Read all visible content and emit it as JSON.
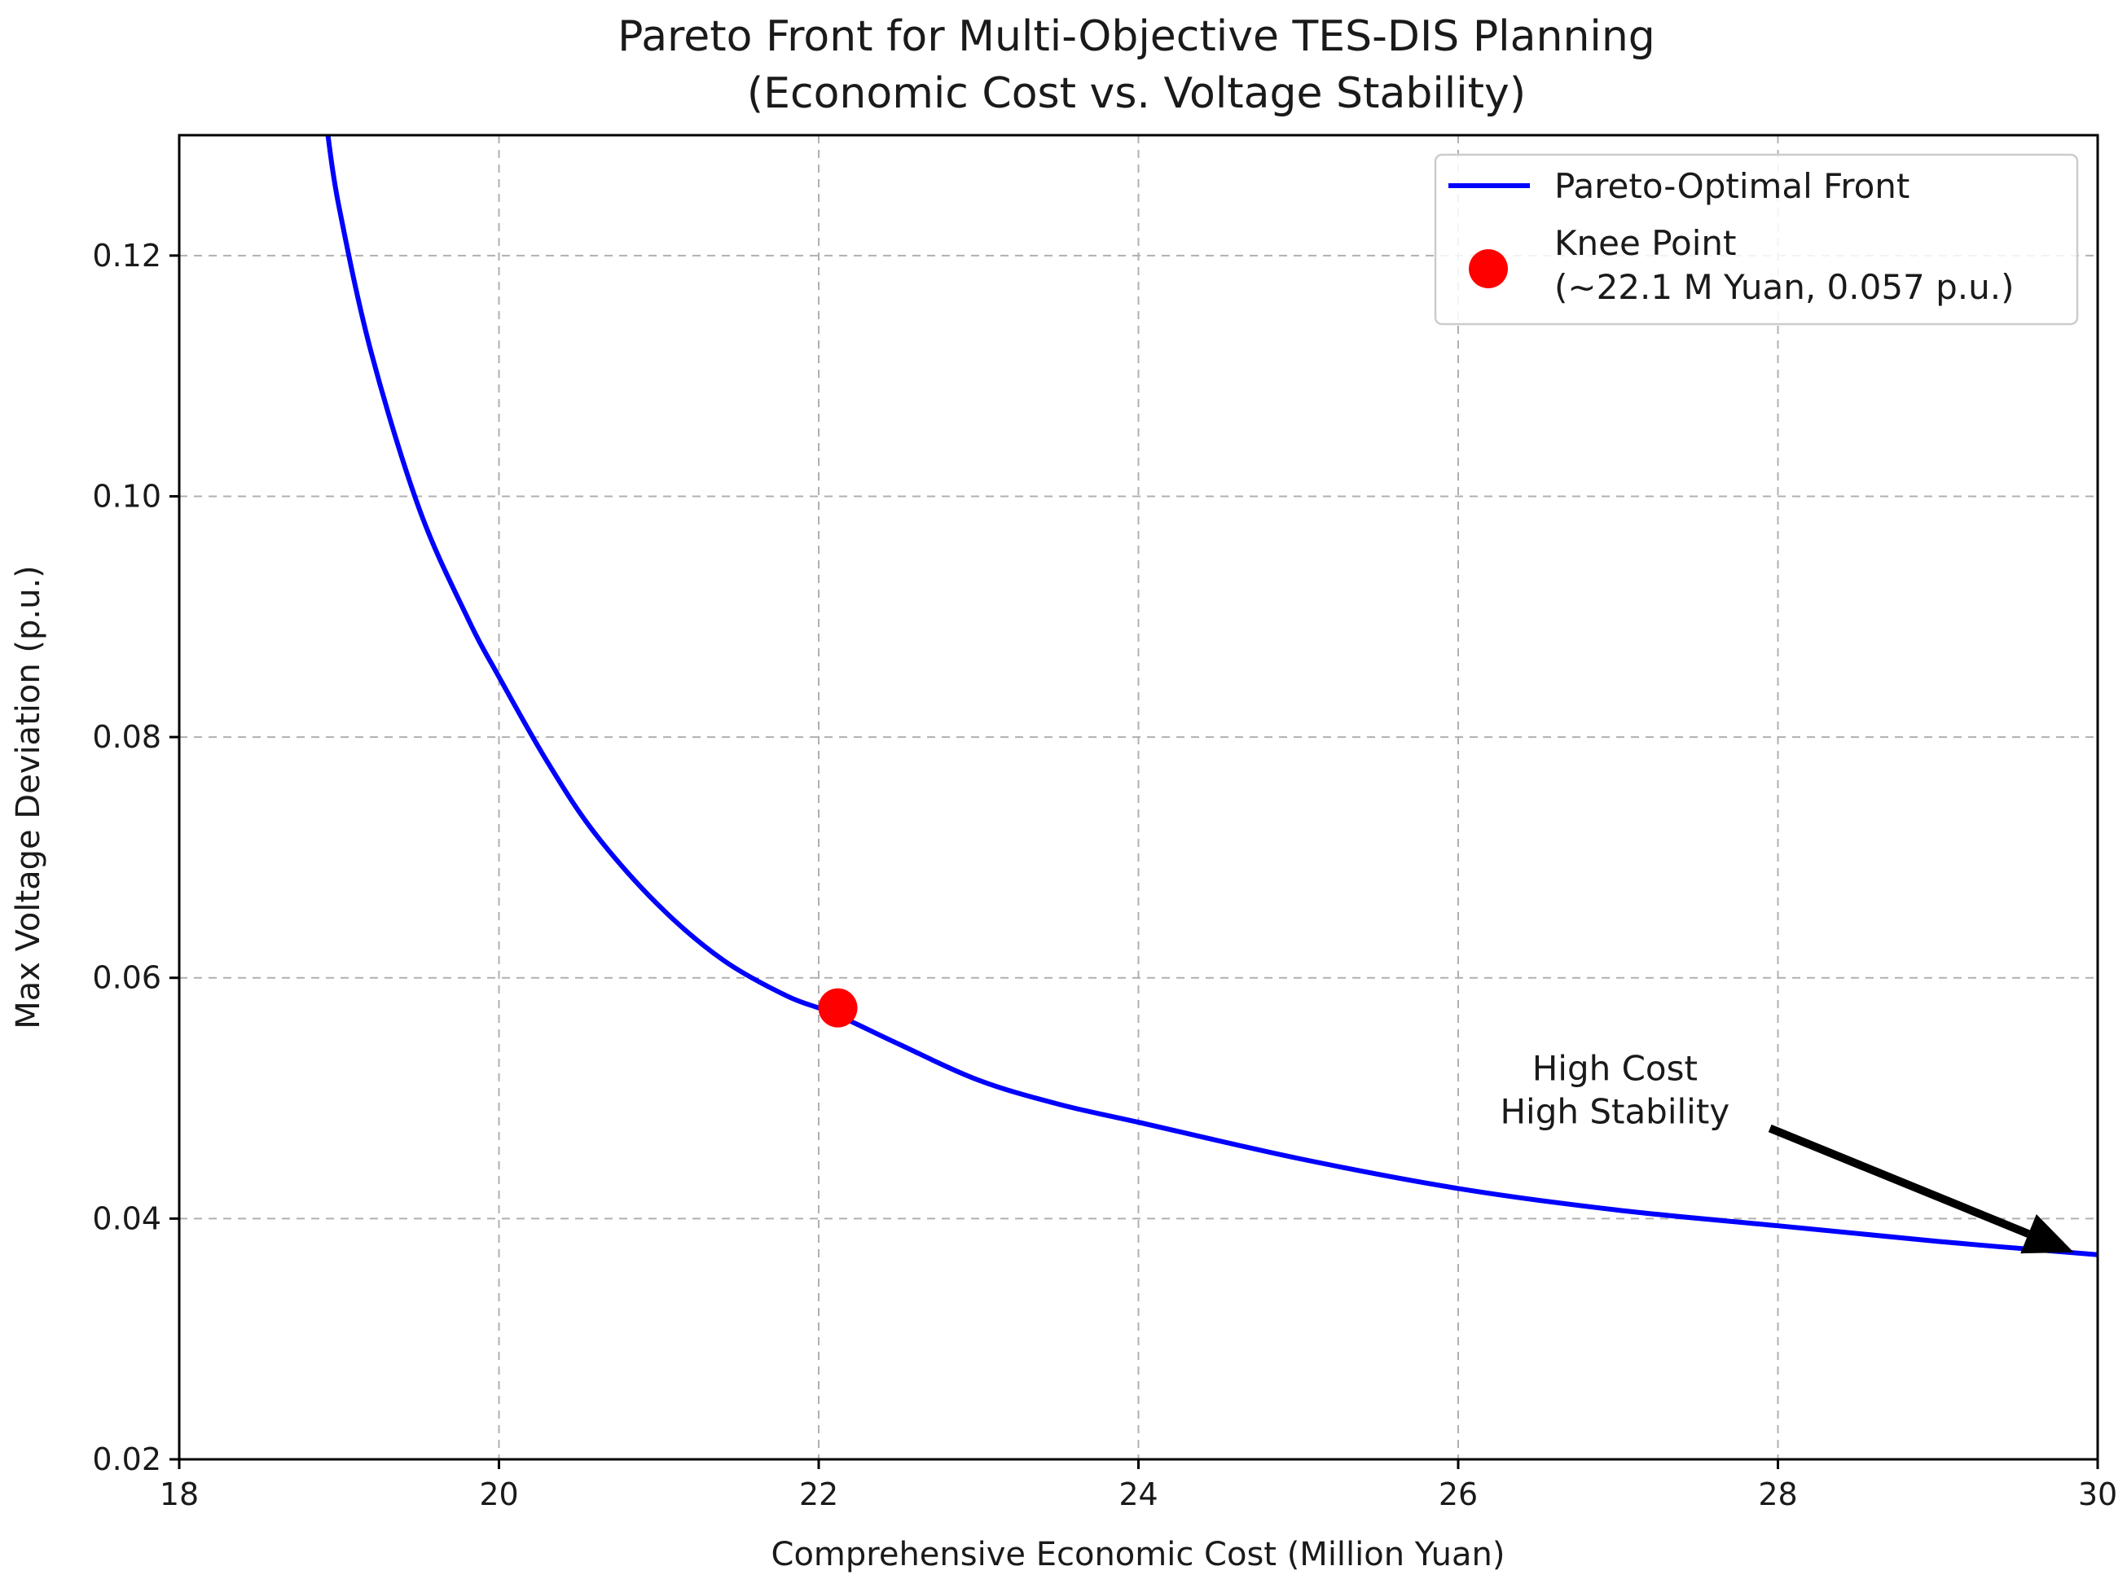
{
  "chart_data": {
    "type": "line",
    "title": "Pareto Front for Multi-Objective TES-DIS Planning",
    "subtitle": "(Economic Cost vs. Voltage Stability)",
    "xlabel": "Comprehensive Economic Cost (Million Yuan)",
    "ylabel": "Max Voltage Deviation (p.u.)",
    "xlim": [
      18,
      30
    ],
    "ylim": [
      0.02,
      0.13
    ],
    "xticks": [
      18,
      20,
      22,
      24,
      26,
      28,
      30
    ],
    "yticks": [
      0.02,
      0.04,
      0.06,
      0.08,
      0.1,
      0.12
    ],
    "xtick_labels": [
      "18",
      "20",
      "22",
      "24",
      "26",
      "28",
      "30"
    ],
    "ytick_labels": [
      "0.02",
      "0.04",
      "0.06",
      "0.08",
      "0.10",
      "0.12"
    ],
    "grid": true,
    "legend_position": "top-right",
    "series": [
      {
        "name": "Pareto-Optimal Front",
        "color": "#0000ff",
        "x": [
          18.93,
          19.0,
          19.2,
          19.5,
          19.8,
          20.0,
          20.3,
          20.6,
          21.0,
          21.4,
          21.8,
          22.1,
          22.5,
          23.0,
          23.5,
          24.0,
          25.0,
          26.0,
          27.0,
          28.0,
          29.0,
          30.0
        ],
        "y": [
          0.13,
          0.124,
          0.112,
          0.099,
          0.09,
          0.085,
          0.078,
          0.072,
          0.066,
          0.0615,
          0.0585,
          0.057,
          0.0545,
          0.0515,
          0.0495,
          0.048,
          0.045,
          0.0425,
          0.0407,
          0.0394,
          0.0381,
          0.037
        ]
      }
    ],
    "knee_point": {
      "label": "Knee Point",
      "label_detail": "(~22.1 M Yuan, 0.057 p.u.)",
      "x": 22.12,
      "y": 0.0575,
      "color": "#ff0000"
    },
    "annotation": {
      "lines": [
        "High Cost",
        "High Stability"
      ],
      "text_x": 26.98,
      "text_y": 0.0515,
      "arrow_from": [
        27.95,
        0.0475
      ],
      "arrow_to": [
        29.85,
        0.0372
      ]
    }
  }
}
